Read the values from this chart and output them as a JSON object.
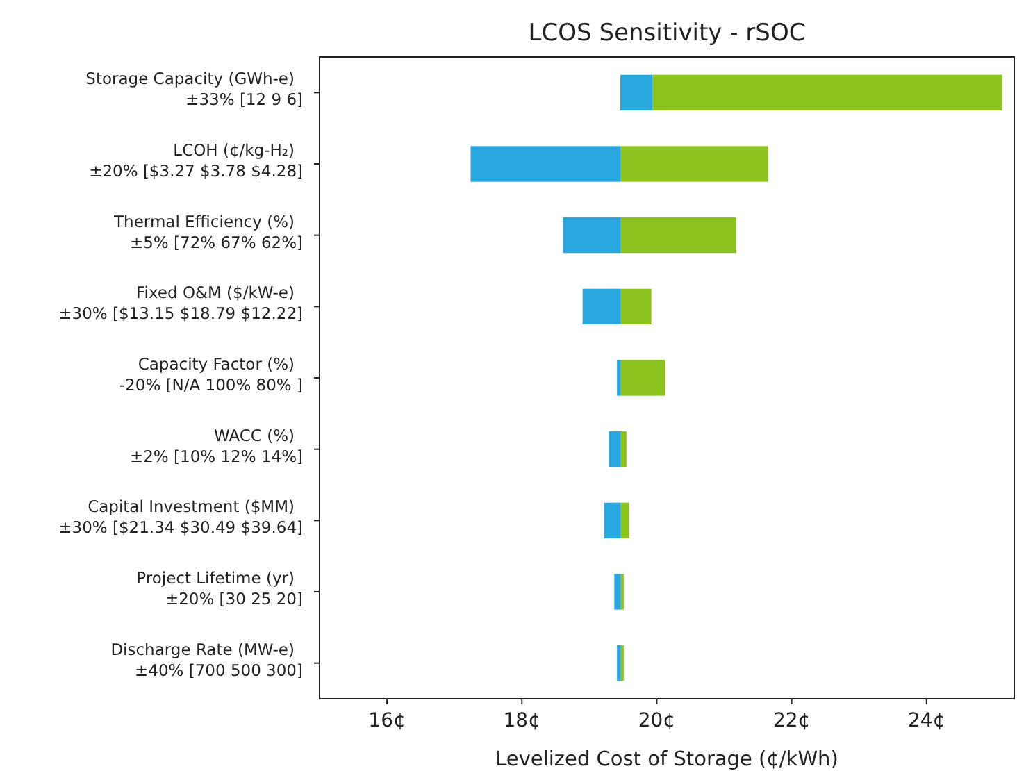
{
  "chart_data": {
    "type": "bar",
    "orientation": "horizontal",
    "title": "LCOS Sensitivity - rSOC",
    "xlabel": "Levelized Cost of Storage (¢/kWh)",
    "categories": [
      "Storage Capacity (GWh-e)\n±33% [12 9 6]",
      "LCOH (¢/kg-H₂)\n±20% [$3.27 $3.78 $4.28]",
      "Thermal Efficiency (%)\n±5% [72% 67% 62%]",
      "Fixed O&M ($/kW-e)\n±30% [$13.15 $18.79 $12.22]",
      "Capacity Factor (%)\n-20% [N/A 100% 80% ]",
      "WACC (%)\n±2% [10% 12% 14%]",
      "Capital Investment ($MM)\n±30% [$21.34 $30.49 $39.64]",
      "Project Lifetime (yr)\n±20% [30 25 20]",
      "Discharge Rate (MW-e)\n±40% [700 500 300]"
    ],
    "series": [
      {
        "color": "#29a8e0",
        "base": [
          19.46,
          19.46,
          19.46,
          19.46,
          19.46,
          19.46,
          19.46,
          19.46,
          19.46
        ],
        "values": [
          0.48,
          -2.22,
          -0.85,
          -0.56,
          -0.05,
          -0.17,
          -0.24,
          -0.09,
          -0.05
        ]
      },
      {
        "color": "#8cc21e",
        "base": [
          19.94,
          19.46,
          19.46,
          19.46,
          19.46,
          19.46,
          19.46,
          19.46,
          19.46
        ],
        "values": [
          5.18,
          2.19,
          1.72,
          0.46,
          0.66,
          0.09,
          0.13,
          0.05,
          0.05
        ]
      }
    ],
    "xlim": [
      15,
      25.3
    ],
    "xticks": [
      {
        "value": 16,
        "label": "16¢"
      },
      {
        "value": 18,
        "label": "18¢"
      },
      {
        "value": 20,
        "label": "20¢"
      },
      {
        "value": 22,
        "label": "22¢"
      },
      {
        "value": 24,
        "label": "24¢"
      }
    ],
    "grid": false
  }
}
